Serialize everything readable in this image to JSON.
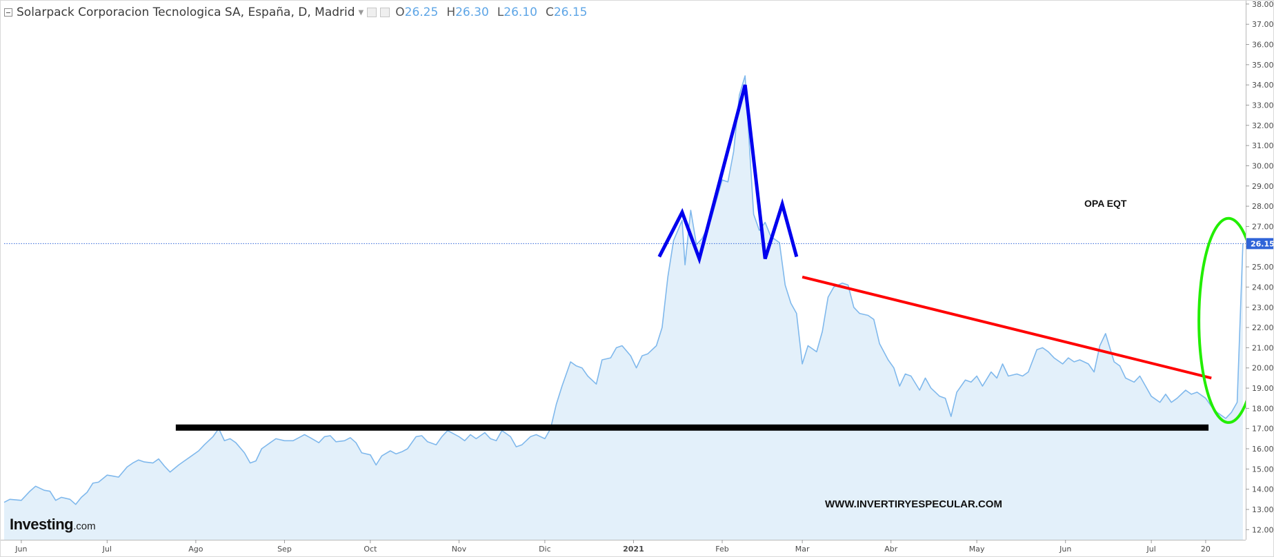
{
  "header": {
    "title": "Solarpack Corporacion Tecnologica SA, España, D, Madrid",
    "ohlc": [
      {
        "k": "O",
        "v": "26.25"
      },
      {
        "k": "H",
        "v": "26.30"
      },
      {
        "k": "L",
        "v": "26.10"
      },
      {
        "k": "C",
        "v": "26.15"
      }
    ]
  },
  "logo": {
    "main": "Investing",
    "suffix": ".com"
  },
  "watermark": "WWW.INVERTIRYESPECULAR.COM",
  "annotation_label": "OPA EQT",
  "colors": {
    "price_line": "#7fb8ec",
    "area_fill": "#e3f0fa",
    "support": "#000000",
    "trend": "#ff0000",
    "pattern": "#0000ee",
    "circle": "#22ee00",
    "last_price_badge": "#2f64d8"
  },
  "chart_data": {
    "type": "area",
    "title": "Solarpack Corporacion Tecnologica SA, España, D, Madrid",
    "ylim": [
      11.5,
      38.2
    ],
    "yticks": [
      12,
      13,
      14,
      15,
      16,
      17,
      18,
      19,
      20,
      21,
      22,
      23,
      24,
      25,
      26,
      27,
      28,
      29,
      30,
      31,
      32,
      33,
      34,
      35,
      36,
      37,
      38
    ],
    "ytick_labels": [
      "12.00",
      "13.00",
      "14.00",
      "15.00",
      "16.00",
      "17.00",
      "18.00",
      "19.00",
      "20.00",
      "21.00",
      "22.00",
      "23.00",
      "24.00",
      "25.00",
      "",
      "27.00",
      "28.00",
      "29.00",
      "30.00",
      "31.00",
      "32.00",
      "33.00",
      "34.00",
      "35.00",
      "36.00",
      "37.00",
      "38.00"
    ],
    "last_price": 26.15,
    "last_price_label": "26.15",
    "xlabels": [
      {
        "label": "Jun",
        "x": "2020-06-01"
      },
      {
        "label": "Jul",
        "x": "2020-07-01"
      },
      {
        "label": "Ago",
        "x": "2020-08-01"
      },
      {
        "label": "Sep",
        "x": "2020-09-01"
      },
      {
        "label": "Oct",
        "x": "2020-10-01"
      },
      {
        "label": "Nov",
        "x": "2020-11-01"
      },
      {
        "label": "Dic",
        "x": "2020-12-01"
      },
      {
        "label": "2021",
        "x": "2021-01-01",
        "bold": true
      },
      {
        "label": "Feb",
        "x": "2021-02-01"
      },
      {
        "label": "Mar",
        "x": "2021-03-01"
      },
      {
        "label": "Abr",
        "x": "2021-04-01"
      },
      {
        "label": "May",
        "x": "2021-05-01"
      },
      {
        "label": "Jun",
        "x": "2021-06-01"
      },
      {
        "label": "Jul",
        "x": "2021-07-01"
      },
      {
        "label": "20",
        "x": "2021-07-20"
      }
    ],
    "xlim": [
      "2020-05-26",
      "2021-08-03"
    ],
    "series": [
      {
        "type": "area",
        "points": [
          [
            "2020-05-26",
            13.35
          ],
          [
            "2020-05-28",
            13.5
          ],
          [
            "2020-06-01",
            13.45
          ],
          [
            "2020-06-04",
            13.9
          ],
          [
            "2020-06-06",
            14.15
          ],
          [
            "2020-06-09",
            13.95
          ],
          [
            "2020-06-11",
            13.9
          ],
          [
            "2020-06-13",
            13.45
          ],
          [
            "2020-06-15",
            13.6
          ],
          [
            "2020-06-18",
            13.5
          ],
          [
            "2020-06-20",
            13.25
          ],
          [
            "2020-06-22",
            13.6
          ],
          [
            "2020-06-24",
            13.85
          ],
          [
            "2020-06-26",
            14.3
          ],
          [
            "2020-06-28",
            14.35
          ],
          [
            "2020-07-01",
            14.7
          ],
          [
            "2020-07-03",
            14.65
          ],
          [
            "2020-07-05",
            14.6
          ],
          [
            "2020-07-08",
            15.1
          ],
          [
            "2020-07-10",
            15.3
          ],
          [
            "2020-07-12",
            15.45
          ],
          [
            "2020-07-14",
            15.35
          ],
          [
            "2020-07-17",
            15.3
          ],
          [
            "2020-07-19",
            15.5
          ],
          [
            "2020-07-21",
            15.15
          ],
          [
            "2020-07-23",
            14.85
          ],
          [
            "2020-07-26",
            15.2
          ],
          [
            "2020-07-28",
            15.4
          ],
          [
            "2020-07-30",
            15.6
          ],
          [
            "2020-08-02",
            15.9
          ],
          [
            "2020-08-04",
            16.2
          ],
          [
            "2020-08-07",
            16.6
          ],
          [
            "2020-08-09",
            17.0
          ],
          [
            "2020-08-11",
            16.4
          ],
          [
            "2020-08-13",
            16.5
          ],
          [
            "2020-08-15",
            16.3
          ],
          [
            "2020-08-18",
            15.8
          ],
          [
            "2020-08-20",
            15.3
          ],
          [
            "2020-08-22",
            15.4
          ],
          [
            "2020-08-24",
            16.0
          ],
          [
            "2020-08-27",
            16.3
          ],
          [
            "2020-08-29",
            16.5
          ],
          [
            "2020-09-01",
            16.4
          ],
          [
            "2020-09-04",
            16.4
          ],
          [
            "2020-09-06",
            16.55
          ],
          [
            "2020-09-08",
            16.7
          ],
          [
            "2020-09-10",
            16.55
          ],
          [
            "2020-09-13",
            16.3
          ],
          [
            "2020-09-15",
            16.6
          ],
          [
            "2020-09-17",
            16.65
          ],
          [
            "2020-09-19",
            16.35
          ],
          [
            "2020-09-22",
            16.4
          ],
          [
            "2020-09-24",
            16.55
          ],
          [
            "2020-09-26",
            16.3
          ],
          [
            "2020-09-28",
            15.8
          ],
          [
            "2020-10-01",
            15.7
          ],
          [
            "2020-10-03",
            15.2
          ],
          [
            "2020-10-05",
            15.65
          ],
          [
            "2020-10-08",
            15.9
          ],
          [
            "2020-10-10",
            15.75
          ],
          [
            "2020-10-12",
            15.85
          ],
          [
            "2020-10-14",
            16.0
          ],
          [
            "2020-10-17",
            16.6
          ],
          [
            "2020-10-19",
            16.65
          ],
          [
            "2020-10-21",
            16.35
          ],
          [
            "2020-10-24",
            16.2
          ],
          [
            "2020-10-26",
            16.6
          ],
          [
            "2020-10-28",
            16.9
          ],
          [
            "2020-11-01",
            16.6
          ],
          [
            "2020-11-03",
            16.4
          ],
          [
            "2020-11-05",
            16.7
          ],
          [
            "2020-11-07",
            16.5
          ],
          [
            "2020-11-10",
            16.8
          ],
          [
            "2020-11-12",
            16.5
          ],
          [
            "2020-11-14",
            16.4
          ],
          [
            "2020-11-16",
            16.9
          ],
          [
            "2020-11-19",
            16.6
          ],
          [
            "2020-11-21",
            16.1
          ],
          [
            "2020-11-23",
            16.2
          ],
          [
            "2020-11-26",
            16.6
          ],
          [
            "2020-11-28",
            16.7
          ],
          [
            "2020-12-01",
            16.5
          ],
          [
            "2020-12-03",
            17.0
          ],
          [
            "2020-12-05",
            18.2
          ],
          [
            "2020-12-07",
            19.1
          ],
          [
            "2020-12-10",
            20.3
          ],
          [
            "2020-12-12",
            20.1
          ],
          [
            "2020-12-14",
            20.0
          ],
          [
            "2020-12-16",
            19.6
          ],
          [
            "2020-12-19",
            19.2
          ],
          [
            "2020-12-21",
            20.4
          ],
          [
            "2020-12-24",
            20.5
          ],
          [
            "2020-12-26",
            21.0
          ],
          [
            "2020-12-28",
            21.1
          ],
          [
            "2020-12-31",
            20.6
          ],
          [
            "2021-01-02",
            20.0
          ],
          [
            "2021-01-04",
            20.6
          ],
          [
            "2021-01-06",
            20.7
          ],
          [
            "2021-01-09",
            21.1
          ],
          [
            "2021-01-11",
            22.0
          ],
          [
            "2021-01-13",
            24.5
          ],
          [
            "2021-01-15",
            26.3
          ],
          [
            "2021-01-18",
            27.3
          ],
          [
            "2021-01-19",
            25.1
          ],
          [
            "2021-01-21",
            27.8
          ],
          [
            "2021-01-23",
            26.1
          ],
          [
            "2021-01-25",
            26.4
          ],
          [
            "2021-01-28",
            27.3
          ],
          [
            "2021-01-30",
            28.3
          ],
          [
            "2021-02-01",
            29.3
          ],
          [
            "2021-02-03",
            29.2
          ],
          [
            "2021-02-05",
            30.7
          ],
          [
            "2021-02-07",
            33.5
          ],
          [
            "2021-02-09",
            34.45
          ],
          [
            "2021-02-12",
            27.6
          ],
          [
            "2021-02-14",
            26.8
          ],
          [
            "2021-02-16",
            27.2
          ],
          [
            "2021-02-18",
            26.5
          ],
          [
            "2021-02-21",
            26.2
          ],
          [
            "2021-02-23",
            24.1
          ],
          [
            "2021-02-25",
            23.2
          ],
          [
            "2021-02-27",
            22.7
          ],
          [
            "2021-03-01",
            20.2
          ],
          [
            "2021-03-03",
            21.1
          ],
          [
            "2021-03-06",
            20.8
          ],
          [
            "2021-03-08",
            21.8
          ],
          [
            "2021-03-10",
            23.5
          ],
          [
            "2021-03-12",
            24.0
          ],
          [
            "2021-03-15",
            24.2
          ],
          [
            "2021-03-17",
            24.1
          ],
          [
            "2021-03-19",
            23.0
          ],
          [
            "2021-03-21",
            22.7
          ],
          [
            "2021-03-24",
            22.6
          ],
          [
            "2021-03-26",
            22.4
          ],
          [
            "2021-03-28",
            21.2
          ],
          [
            "2021-03-31",
            20.4
          ],
          [
            "2021-04-02",
            20.0
          ],
          [
            "2021-04-04",
            19.1
          ],
          [
            "2021-04-06",
            19.7
          ],
          [
            "2021-04-08",
            19.6
          ],
          [
            "2021-04-11",
            18.9
          ],
          [
            "2021-04-13",
            19.5
          ],
          [
            "2021-04-15",
            19.0
          ],
          [
            "2021-04-18",
            18.6
          ],
          [
            "2021-04-20",
            18.5
          ],
          [
            "2021-04-22",
            17.6
          ],
          [
            "2021-04-24",
            18.8
          ],
          [
            "2021-04-27",
            19.4
          ],
          [
            "2021-04-29",
            19.3
          ],
          [
            "2021-05-01",
            19.6
          ],
          [
            "2021-05-03",
            19.1
          ],
          [
            "2021-05-06",
            19.8
          ],
          [
            "2021-05-08",
            19.5
          ],
          [
            "2021-05-10",
            20.2
          ],
          [
            "2021-05-12",
            19.6
          ],
          [
            "2021-05-15",
            19.7
          ],
          [
            "2021-05-17",
            19.6
          ],
          [
            "2021-05-19",
            19.8
          ],
          [
            "2021-05-22",
            20.9
          ],
          [
            "2021-05-24",
            21.0
          ],
          [
            "2021-05-26",
            20.8
          ],
          [
            "2021-05-28",
            20.5
          ],
          [
            "2021-05-31",
            20.2
          ],
          [
            "2021-06-02",
            20.5
          ],
          [
            "2021-06-04",
            20.3
          ],
          [
            "2021-06-06",
            20.4
          ],
          [
            "2021-06-09",
            20.2
          ],
          [
            "2021-06-11",
            19.8
          ],
          [
            "2021-06-13",
            21.1
          ],
          [
            "2021-06-15",
            21.7
          ],
          [
            "2021-06-18",
            20.3
          ],
          [
            "2021-06-20",
            20.1
          ],
          [
            "2021-06-22",
            19.5
          ],
          [
            "2021-06-25",
            19.3
          ],
          [
            "2021-06-27",
            19.6
          ],
          [
            "2021-06-29",
            19.1
          ],
          [
            "2021-07-01",
            18.6
          ],
          [
            "2021-07-04",
            18.3
          ],
          [
            "2021-07-06",
            18.7
          ],
          [
            "2021-07-08",
            18.3
          ],
          [
            "2021-07-10",
            18.5
          ],
          [
            "2021-07-13",
            18.9
          ],
          [
            "2021-07-15",
            18.7
          ],
          [
            "2021-07-17",
            18.8
          ],
          [
            "2021-07-20",
            18.5
          ],
          [
            "2021-07-22",
            18.1
          ],
          [
            "2021-07-24",
            17.8
          ],
          [
            "2021-07-27",
            17.5
          ],
          [
            "2021-07-29",
            17.8
          ],
          [
            "2021-07-31",
            18.3
          ],
          [
            "2021-08-02",
            26.15
          ]
        ]
      }
    ],
    "overlays": [
      {
        "kind": "support-line",
        "color": "#000000",
        "from": [
          "2020-07-25",
          17.05
        ],
        "to": [
          "2021-07-21",
          17.05
        ]
      },
      {
        "kind": "trend-line",
        "color": "#ff0000",
        "from": [
          "2021-03-01",
          24.5
        ],
        "to": [
          "2021-07-22",
          19.5
        ]
      },
      {
        "kind": "pattern",
        "color": "#0000ee",
        "points": [
          [
            "2021-01-10",
            25.5
          ],
          [
            "2021-01-18",
            27.7
          ],
          [
            "2021-01-24",
            25.4
          ],
          [
            "2021-02-09",
            34.0
          ],
          [
            "2021-02-16",
            25.4
          ],
          [
            "2021-02-22",
            28.1
          ],
          [
            "2021-02-27",
            25.5
          ]
        ]
      },
      {
        "kind": "ellipse",
        "color": "#22ee00",
        "center": [
          "2021-07-28",
          22.35
        ],
        "ry": 5.05
      }
    ]
  }
}
